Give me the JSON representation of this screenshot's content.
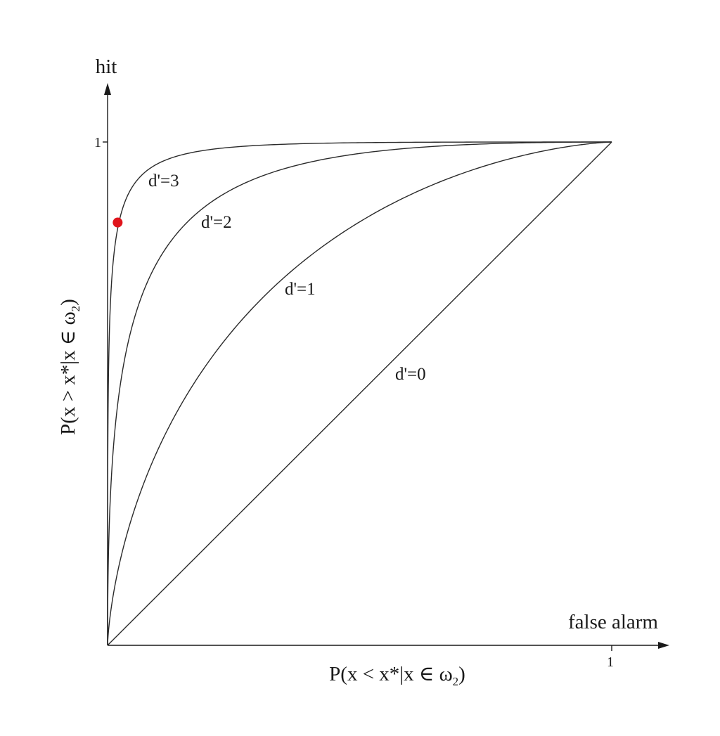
{
  "chart_data": {
    "type": "line",
    "x_axis": {
      "title": "false alarm",
      "expression": "P(x < x*|x ∈ ω",
      "expression_subscript": "2",
      "expression_close": ")",
      "ticks": [
        "1"
      ],
      "range": [
        0,
        1.1
      ]
    },
    "y_axis": {
      "title": "hit",
      "expression": "P(x > x*|x ∈ ω",
      "expression_subscript": "2",
      "expression_close": ")",
      "ticks": [
        "1"
      ],
      "range": [
        0,
        1.15
      ]
    },
    "series": [
      {
        "name": "d'=0",
        "d_prime": 0
      },
      {
        "name": "d'=1",
        "d_prime": 1
      },
      {
        "name": "d'=2",
        "d_prime": 2
      },
      {
        "name": "d'=3",
        "d_prime": 3
      }
    ],
    "highlight_point": {
      "x": 0.02,
      "y": 0.84,
      "color": "#e0151c"
    },
    "line_color": "#2a2a2a",
    "grid": false,
    "legend": "none"
  }
}
